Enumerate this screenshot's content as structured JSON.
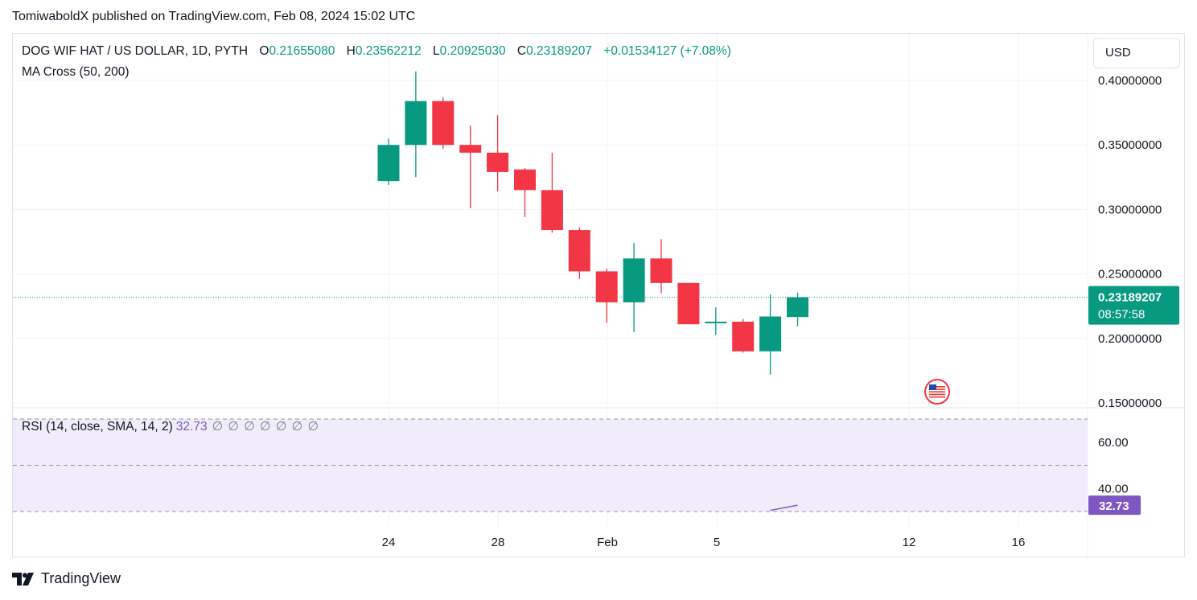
{
  "header": {
    "publisher": "TomiwaboldX published on TradingView.com, Feb 08, 2024 15:02 UTC"
  },
  "currency_button": "USD",
  "legend": {
    "symbol": "DOG WIF HAT / US DOLLAR, 1D, PYTH",
    "open_key": "O",
    "open": "0.21655080",
    "high_key": "H",
    "high": "0.23562212",
    "low_key": "L",
    "low": "0.20925030",
    "close_key": "C",
    "close": "0.23189207",
    "change": "+0.01534127 (+7.08%)",
    "ma": "MA Cross (50, 200)",
    "rsi_label": "RSI (14, close, SMA, 14, 2)",
    "rsi_value": "32.73",
    "rsi_placeholders": "∅ ∅ ∅ ∅ ∅ ∅ ∅"
  },
  "price_tag": {
    "price": "0.23189207",
    "countdown": "08:57:58"
  },
  "rsi_tag": "32.73",
  "footer": {
    "brand": "TradingView"
  },
  "colors": {
    "up": "#089981",
    "down": "#f23645",
    "rsi": "#7e57c2",
    "rsi_band": "#f0ecfa"
  },
  "chart_data": [
    {
      "type": "candlestick",
      "yaxis_ticks": [
        "0.40000000",
        "0.35000000",
        "0.30000000",
        "0.25000000",
        "0.20000000",
        "0.15000000"
      ],
      "ylim": [
        0.15,
        0.4
      ],
      "xaxis_ticks": [
        "24",
        "28",
        "Feb",
        "5",
        "12",
        "16"
      ],
      "last_price": 0.23189207,
      "candles": [
        {
          "date": "2024-01-24",
          "o": 0.322,
          "h": 0.355,
          "l": 0.319,
          "c": 0.35
        },
        {
          "date": "2024-01-25",
          "o": 0.35,
          "h": 0.407,
          "l": 0.325,
          "c": 0.384
        },
        {
          "date": "2024-01-26",
          "o": 0.384,
          "h": 0.387,
          "l": 0.347,
          "c": 0.35
        },
        {
          "date": "2024-01-27",
          "o": 0.35,
          "h": 0.365,
          "l": 0.301,
          "c": 0.344
        },
        {
          "date": "2024-01-28",
          "o": 0.344,
          "h": 0.373,
          "l": 0.314,
          "c": 0.329
        },
        {
          "date": "2024-01-29",
          "o": 0.331,
          "h": 0.332,
          "l": 0.294,
          "c": 0.315
        },
        {
          "date": "2024-01-30",
          "o": 0.315,
          "h": 0.344,
          "l": 0.282,
          "c": 0.284
        },
        {
          "date": "2024-01-31",
          "o": 0.284,
          "h": 0.286,
          "l": 0.246,
          "c": 0.252
        },
        {
          "date": "2024-02-01",
          "o": 0.252,
          "h": 0.254,
          "l": 0.212,
          "c": 0.228
        },
        {
          "date": "2024-02-02",
          "o": 0.228,
          "h": 0.274,
          "l": 0.205,
          "c": 0.262
        },
        {
          "date": "2024-02-03",
          "o": 0.262,
          "h": 0.277,
          "l": 0.235,
          "c": 0.243
        },
        {
          "date": "2024-02-04",
          "o": 0.243,
          "h": 0.243,
          "l": 0.211,
          "c": 0.211
        },
        {
          "date": "2024-02-05",
          "o": 0.212,
          "h": 0.224,
          "l": 0.203,
          "c": 0.213
        },
        {
          "date": "2024-02-06",
          "o": 0.213,
          "h": 0.215,
          "l": 0.189,
          "c": 0.19
        },
        {
          "date": "2024-02-07",
          "o": 0.19,
          "h": 0.234,
          "l": 0.172,
          "c": 0.217
        },
        {
          "date": "2024-02-08",
          "o": 0.2166,
          "h": 0.2356,
          "l": 0.2093,
          "c": 0.2319
        }
      ]
    },
    {
      "type": "line",
      "title": "RSI (14, close, SMA, 14, 2)",
      "yaxis_ticks": [
        "60.00",
        "40.00"
      ],
      "bands": [
        70,
        50,
        30
      ],
      "x": [
        "2024-02-07",
        "2024-02-08"
      ],
      "values": [
        30.5,
        32.73
      ]
    }
  ]
}
